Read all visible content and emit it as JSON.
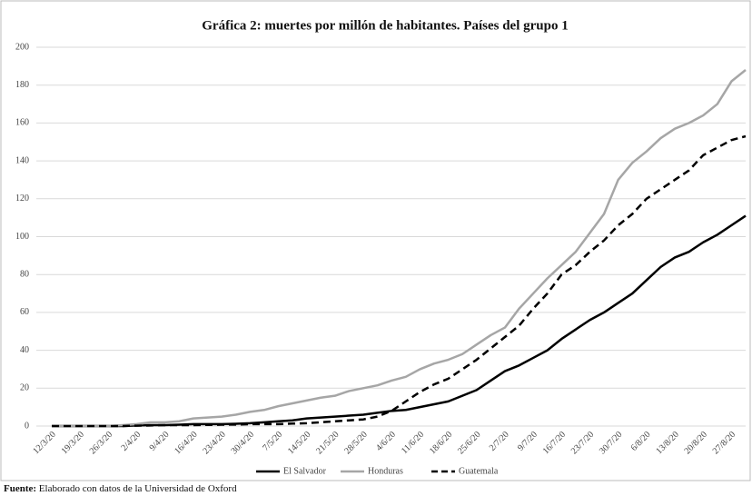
{
  "chart_data": {
    "type": "line",
    "title": "Gráfica 2: muertes por millón de habitantes. Países del grupo 1",
    "categories": [
      "12/3/20",
      null,
      "19/3/20",
      null,
      "26/3/20",
      null,
      "2/4/20",
      null,
      "9/4/20",
      null,
      "16/4/20",
      null,
      "23/4/20",
      null,
      "30/4/20",
      null,
      "7/5/20",
      null,
      "14/5/20",
      null,
      "21/5/20",
      null,
      "28/5/20",
      null,
      "4/6/20",
      null,
      "11/6/20",
      null,
      "18/6/20",
      null,
      "25/6/20",
      null,
      "2/7/20",
      null,
      "9/7/20",
      null,
      "16/7/20",
      null,
      "23/7/20",
      null,
      "30/7/20",
      null,
      "6/8/20",
      null,
      "13/8/20",
      null,
      "20/8/20",
      null,
      "27/8/20",
      null
    ],
    "series": [
      {
        "name": "El Salvador",
        "color": "#000000",
        "style": "solid",
        "values": [
          0,
          0,
          0,
          0,
          0,
          0,
          0.3,
          0.5,
          0.5,
          0.7,
          1,
          1,
          1,
          1.2,
          1.5,
          2,
          2.5,
          3,
          4,
          4.5,
          5,
          5.5,
          6,
          7,
          8,
          8.5,
          10,
          11.5,
          13,
          16,
          19,
          24,
          29,
          32,
          36,
          40,
          46,
          51,
          56,
          60,
          65,
          70,
          77,
          84,
          89,
          92,
          97,
          101,
          106,
          111
        ]
      },
      {
        "name": "Honduras",
        "color": "#a6a6a6",
        "style": "solid",
        "values": [
          0,
          0,
          0,
          0,
          0,
          0.5,
          1,
          2,
          2,
          2.5,
          4,
          4.5,
          5,
          6,
          7.5,
          8.5,
          10.5,
          12,
          13.5,
          15,
          16,
          18.5,
          20,
          21.5,
          24,
          26,
          30,
          33,
          35,
          38,
          43,
          48,
          52,
          62,
          70,
          78,
          85,
          92,
          102,
          112,
          130,
          139,
          145,
          152,
          157,
          160,
          164,
          170,
          182,
          188
        ]
      },
      {
        "name": "Guatemala",
        "color": "#000000",
        "style": "dashed",
        "values": [
          0,
          0,
          0,
          0,
          0,
          0,
          0.2,
          0.3,
          0.5,
          0.5,
          0.5,
          0.6,
          0.7,
          0.8,
          1,
          1,
          1,
          1.3,
          1.5,
          2,
          2.5,
          3,
          3.5,
          5,
          8,
          13,
          18,
          22,
          25,
          30,
          35,
          41,
          47,
          53,
          62,
          70,
          80,
          85,
          92,
          98,
          106,
          112,
          120,
          125,
          130,
          135,
          143,
          147,
          151,
          153
        ]
      }
    ],
    "ylim": [
      0,
      200
    ],
    "yticks": [
      0,
      20,
      40,
      60,
      80,
      100,
      120,
      140,
      160,
      180,
      200
    ],
    "grid": true,
    "legend": "bottom"
  },
  "source_label": "Fuente:",
  "source_text": "Elaborado con datos de la Universidad de Oxford"
}
